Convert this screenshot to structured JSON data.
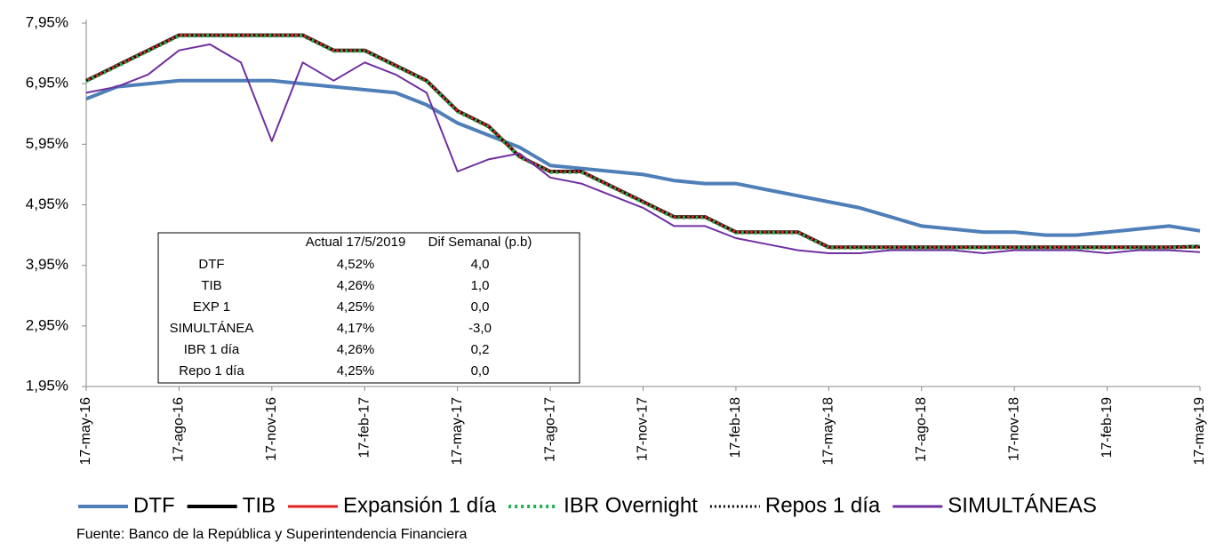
{
  "chart_data": {
    "type": "line",
    "categories": [
      "17-may-16",
      null,
      null,
      "17-ago-16",
      null,
      null,
      "17-nov-16",
      null,
      null,
      "17-feb-17",
      null,
      null,
      "17-may-17",
      null,
      null,
      "17-ago-17",
      null,
      null,
      "17-nov-17",
      null,
      null,
      "17-feb-18",
      null,
      null,
      "17-may-18",
      null,
      null,
      "17-ago-18",
      null,
      null,
      "17-nov-18",
      null,
      null,
      "17-feb-19",
      null,
      null,
      "17-may-19"
    ],
    "ylim": [
      1.95,
      7.95
    ],
    "yticks": [
      {
        "value": 1.95,
        "label": "1,95%"
      },
      {
        "value": 2.95,
        "label": "2,95%"
      },
      {
        "value": 3.95,
        "label": "3,95%"
      },
      {
        "value": 4.95,
        "label": "4,95%"
      },
      {
        "value": 5.95,
        "label": "5,95%"
      },
      {
        "value": 6.95,
        "label": "6,95%"
      },
      {
        "value": 7.95,
        "label": "7,95%"
      }
    ],
    "grid": false,
    "series": [
      {
        "name": "DTF",
        "color": "#4f7fb8",
        "dash": "solid",
        "width": 4,
        "values": [
          6.7,
          6.9,
          6.95,
          7.0,
          7.0,
          7.0,
          7.0,
          6.95,
          6.9,
          6.85,
          6.8,
          6.6,
          6.3,
          6.1,
          5.9,
          5.6,
          5.55,
          5.5,
          5.45,
          5.35,
          5.3,
          5.3,
          5.2,
          5.1,
          5.0,
          4.9,
          4.75,
          4.6,
          4.55,
          4.5,
          4.5,
          4.45,
          4.45,
          4.5,
          4.55,
          4.6,
          4.52
        ]
      },
      {
        "name": "TIB",
        "color": "#000000",
        "dash": "solid",
        "width": 4,
        "values": [
          7.0,
          7.25,
          7.5,
          7.75,
          7.75,
          7.75,
          7.75,
          7.75,
          7.5,
          7.5,
          7.25,
          7.0,
          6.5,
          6.25,
          5.75,
          5.5,
          5.5,
          5.25,
          5.0,
          4.75,
          4.75,
          4.5,
          4.5,
          4.5,
          4.25,
          4.25,
          4.25,
          4.25,
          4.25,
          4.25,
          4.25,
          4.25,
          4.25,
          4.25,
          4.25,
          4.25,
          4.26
        ]
      },
      {
        "name": "Expansión 1 día",
        "color": "#e02020",
        "dash": "solid",
        "width": 3,
        "values": [
          7.0,
          7.25,
          7.5,
          7.75,
          7.75,
          7.75,
          7.75,
          7.75,
          7.5,
          7.5,
          7.25,
          7.0,
          6.5,
          6.25,
          5.75,
          5.5,
          5.5,
          5.25,
          5.0,
          4.75,
          4.75,
          4.5,
          4.5,
          4.5,
          4.25,
          4.25,
          4.25,
          4.25,
          4.25,
          4.25,
          4.25,
          4.25,
          4.25,
          4.25,
          4.25,
          4.25,
          4.25
        ]
      },
      {
        "name": "IBR Overnight",
        "color": "#1fb050",
        "dash": "dot",
        "width": 4,
        "values": [
          6.99,
          7.24,
          7.49,
          7.74,
          7.74,
          7.74,
          7.74,
          7.74,
          7.49,
          7.49,
          7.24,
          6.99,
          6.49,
          6.24,
          5.74,
          5.49,
          5.49,
          5.24,
          4.99,
          4.74,
          4.74,
          4.49,
          4.49,
          4.49,
          4.24,
          4.24,
          4.24,
          4.24,
          4.24,
          4.24,
          4.24,
          4.24,
          4.24,
          4.24,
          4.24,
          4.24,
          4.26
        ]
      },
      {
        "name": "Repos 1 día",
        "color": "#000000",
        "dash": "dot",
        "width": 2,
        "values": [
          7.0,
          7.25,
          7.5,
          7.75,
          7.75,
          7.75,
          7.75,
          7.75,
          7.5,
          7.5,
          7.25,
          7.0,
          6.5,
          6.25,
          5.75,
          5.5,
          5.5,
          5.25,
          5.0,
          4.75,
          4.75,
          4.5,
          4.5,
          4.5,
          4.25,
          4.25,
          4.25,
          4.25,
          4.25,
          4.25,
          4.25,
          4.25,
          4.25,
          4.25,
          4.25,
          4.25,
          4.25
        ]
      },
      {
        "name": "SIMULTÁNEAS",
        "color": "#7030a0",
        "dash": "solid",
        "width": 2,
        "values": [
          6.8,
          6.9,
          7.1,
          7.5,
          7.6,
          7.3,
          6.0,
          7.3,
          7.0,
          7.3,
          7.1,
          6.8,
          5.5,
          5.7,
          5.8,
          5.4,
          5.3,
          5.1,
          4.9,
          4.6,
          4.6,
          4.4,
          4.3,
          4.2,
          4.15,
          4.15,
          4.2,
          4.2,
          4.2,
          4.15,
          4.2,
          4.2,
          4.2,
          4.15,
          4.2,
          4.2,
          4.17
        ]
      }
    ],
    "table": {
      "columns": [
        "Actual 17/5/2019",
        "Dif Semanal (p.b)"
      ],
      "rows": [
        {
          "label": "DTF",
          "values": [
            "4,52%",
            "4,0"
          ]
        },
        {
          "label": "TIB",
          "values": [
            "4,26%",
            "1,0"
          ]
        },
        {
          "label": "EXP 1",
          "values": [
            "4,25%",
            "0,0"
          ]
        },
        {
          "label": "SIMULTÁNEA",
          "values": [
            "4,17%",
            "-3,0"
          ]
        },
        {
          "label": "IBR 1 día",
          "values": [
            "4,26%",
            "0,2"
          ]
        },
        {
          "label": "Repo 1 día",
          "values": [
            "4,25%",
            "0,0"
          ]
        }
      ]
    },
    "source": "Fuente: Banco de la República y Superintendencia Financiera"
  }
}
